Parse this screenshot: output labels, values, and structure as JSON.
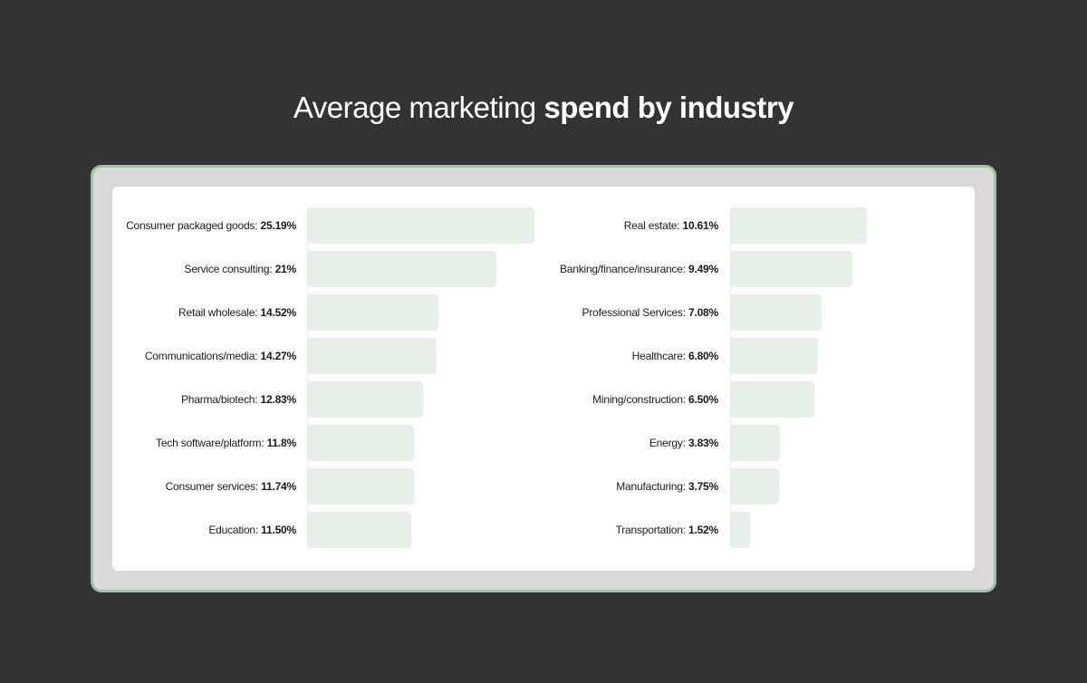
{
  "title": {
    "light": "Average marketing",
    "bold": "spend by industry"
  },
  "colors": {
    "background": "#333333",
    "frame": "#d9d9d9",
    "frame_border": "#9bc3a5",
    "bar": "#e6efe8"
  },
  "chart_data": [
    {
      "type": "bar",
      "orientation": "horizontal",
      "categories": [
        "Consumer packaged goods",
        "Service consulting",
        "Retail wholesale",
        "Communications/media",
        "Pharma/biotech",
        "Tech software/platform",
        "Consumer services",
        "Education"
      ],
      "values": [
        25.19,
        21,
        14.52,
        14.27,
        12.83,
        11.8,
        11.74,
        11.5
      ],
      "value_labels": [
        "25.19%",
        "21%",
        "14.52%",
        "14.27%",
        "12.83%",
        "11.8%",
        "11.74%",
        "11.50%"
      ],
      "unit": "%"
    },
    {
      "type": "bar",
      "orientation": "horizontal",
      "categories": [
        "Real estate",
        "Banking/finance/insurance",
        "Professional Services",
        "Healthcare",
        "Mining/construction",
        "Energy",
        "Manufacturing",
        "Transportation"
      ],
      "values": [
        10.61,
        9.49,
        7.08,
        6.8,
        6.5,
        3.83,
        3.75,
        1.52
      ],
      "value_labels": [
        "10.61%",
        "9.49%",
        "7.08%",
        "6.80%",
        "6.50%",
        "3.83%",
        "3.75%",
        "1.52%"
      ],
      "unit": "%"
    }
  ]
}
